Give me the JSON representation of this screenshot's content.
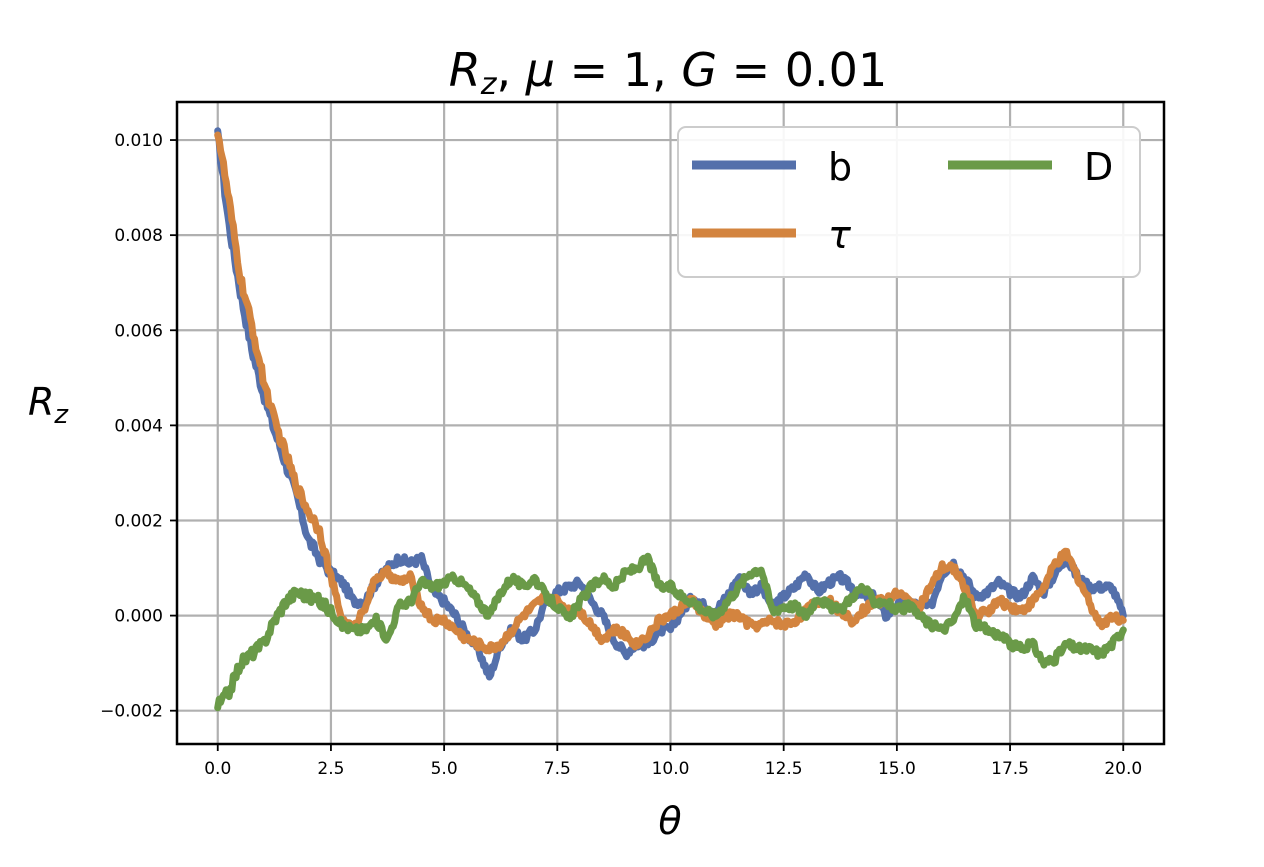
{
  "chart_data": {
    "type": "line",
    "title": "R_z, μ = 1, G = 0.01",
    "title_parts": {
      "r": "R",
      "r_sub": "z",
      "mid1": ", ",
      "mu": "μ",
      "eq1": " = 1, ",
      "g": "G",
      "eq2": " = 0.01"
    },
    "xlabel": "θ",
    "ylabel": "R_z",
    "ylabel_parts": {
      "r": "R",
      "r_sub": "z"
    },
    "xlim": [
      -0.9,
      20.9
    ],
    "ylim": [
      -0.0027,
      0.0108
    ],
    "xticks": [
      0.0,
      2.5,
      5.0,
      7.5,
      10.0,
      12.5,
      15.0,
      17.5,
      20.0
    ],
    "xtick_labels": [
      "0.0",
      "2.5",
      "5.0",
      "7.5",
      "10.0",
      "12.5",
      "15.0",
      "17.5",
      "20.0"
    ],
    "yticks": [
      -0.002,
      0.0,
      0.002,
      0.004,
      0.006,
      0.008,
      0.01
    ],
    "ytick_labels": [
      "−0.002",
      "0.000",
      "0.002",
      "0.004",
      "0.006",
      "0.008",
      "0.010"
    ],
    "grid": true,
    "legend": {
      "placement": "top-right",
      "columns": 2
    },
    "series": [
      {
        "name": "b",
        "color": "#5470ab",
        "x": [
          0,
          0.25,
          0.5,
          0.75,
          1.0,
          1.25,
          1.5,
          1.75,
          2.0,
          2.25,
          2.5,
          2.75,
          3.0,
          3.25,
          3.5,
          3.75,
          4.0,
          4.25,
          4.5,
          4.75,
          5.0,
          5.25,
          5.5,
          5.75,
          6.0,
          6.25,
          6.5,
          6.75,
          7.0,
          7.25,
          7.5,
          7.75,
          8.0,
          8.25,
          8.5,
          8.75,
          9.0,
          9.25,
          9.5,
          9.75,
          10.0,
          10.25,
          10.5,
          10.75,
          11.0,
          11.25,
          11.5,
          11.75,
          12.0,
          12.25,
          12.5,
          12.75,
          13.0,
          13.25,
          13.5,
          13.75,
          14.0,
          14.25,
          14.5,
          14.75,
          15.0,
          15.25,
          15.5,
          15.75,
          16.0,
          16.25,
          16.5,
          16.75,
          17.0,
          17.25,
          17.5,
          17.75,
          18.0,
          18.25,
          18.5,
          18.75,
          19.0,
          19.25,
          19.5,
          19.75,
          20.0
        ],
        "y": [
          0.0101,
          0.0082,
          0.0068,
          0.0056,
          0.0047,
          0.0039,
          0.0032,
          0.0025,
          0.0016,
          0.0012,
          0.0009,
          0.0007,
          0.0003,
          0.0003,
          0.0007,
          0.001,
          0.0012,
          0.0011,
          0.0012,
          0.0005,
          0.0003,
          0.0,
          -0.0004,
          -0.0007,
          -0.0013,
          -0.0006,
          -0.0003,
          -0.0005,
          -0.0003,
          0.0003,
          0.0005,
          0.0006,
          0.0007,
          0.0003,
          0.0,
          -0.0005,
          -0.0008,
          -0.0006,
          -0.0006,
          -0.0003,
          -0.0003,
          0.0001,
          0.0004,
          0.0002,
          0.0001,
          0.0004,
          0.0008,
          0.0005,
          0.0006,
          0.0002,
          0.0004,
          0.0006,
          0.0009,
          0.0005,
          0.0007,
          0.0008,
          0.0006,
          0.0004,
          0.0004,
          0.0,
          0.0002,
          0.0003,
          0.0002,
          0.0002,
          0.0009,
          0.0011,
          0.0008,
          0.0004,
          0.0005,
          0.0007,
          0.0005,
          0.0004,
          0.0008,
          0.0005,
          0.0009,
          0.0012,
          0.0008,
          0.0006,
          0.0006,
          0.0006,
          0.0
        ]
      },
      {
        "name": "τ",
        "color": "#d3843f",
        "x": [
          0,
          0.25,
          0.5,
          0.75,
          1.0,
          1.25,
          1.5,
          1.75,
          2.0,
          2.25,
          2.5,
          2.75,
          3.0,
          3.25,
          3.5,
          3.75,
          4.0,
          4.25,
          4.5,
          4.75,
          5.0,
          5.25,
          5.5,
          5.75,
          6.0,
          6.25,
          6.5,
          6.75,
          7.0,
          7.25,
          7.5,
          7.75,
          8.0,
          8.25,
          8.5,
          8.75,
          9.0,
          9.25,
          9.5,
          9.75,
          10.0,
          10.25,
          10.5,
          10.75,
          11.0,
          11.25,
          11.5,
          11.75,
          12.0,
          12.25,
          12.5,
          12.75,
          13.0,
          13.25,
          13.5,
          13.75,
          14.0,
          14.25,
          14.5,
          14.75,
          15.0,
          15.25,
          15.5,
          15.75,
          16.0,
          16.25,
          16.5,
          16.75,
          17.0,
          17.25,
          17.5,
          17.75,
          18.0,
          18.25,
          18.5,
          18.75,
          19.0,
          19.25,
          19.5,
          19.75,
          20.0
        ],
        "y": [
          0.0102,
          0.0087,
          0.0071,
          0.0061,
          0.005,
          0.0041,
          0.0034,
          0.0027,
          0.0022,
          0.0018,
          0.0008,
          -0.0001,
          -0.0003,
          0.0002,
          0.0008,
          0.0009,
          0.0007,
          0.0008,
          0.0002,
          -0.0001,
          -0.0001,
          -0.0003,
          -0.0005,
          -0.0006,
          -0.0007,
          -0.0006,
          -0.0003,
          0.0,
          0.0002,
          0.0004,
          0.0003,
          0.0001,
          0.0001,
          -0.0002,
          -0.0005,
          -0.0003,
          -0.0004,
          -0.0006,
          -0.0004,
          -0.0001,
          0.0,
          0.0002,
          0.0003,
          0.0,
          -0.0002,
          0.0,
          0.0,
          -0.0002,
          -0.0002,
          -0.0001,
          -0.0002,
          -0.0001,
          0.0001,
          0.0003,
          0.0003,
          0.0001,
          -0.0001,
          0.0001,
          0.0003,
          0.0003,
          0.0005,
          0.0003,
          0.0002,
          0.0006,
          0.001,
          0.001,
          0.0006,
          0.0,
          0.0001,
          0.0003,
          0.0002,
          0.0001,
          0.0003,
          0.0006,
          0.0011,
          0.0013,
          0.0008,
          0.0003,
          -0.0002,
          0.0,
          -0.0001
        ]
      },
      {
        "name": "D",
        "color": "#6a9a48",
        "x": [
          0,
          0.25,
          0.5,
          0.75,
          1.0,
          1.25,
          1.5,
          1.75,
          2.0,
          2.25,
          2.5,
          2.75,
          3.0,
          3.25,
          3.5,
          3.75,
          4.0,
          4.25,
          4.5,
          4.75,
          5.0,
          5.25,
          5.5,
          5.75,
          6.0,
          6.25,
          6.5,
          6.75,
          7.0,
          7.25,
          7.5,
          7.75,
          8.0,
          8.25,
          8.5,
          8.75,
          9.0,
          9.25,
          9.5,
          9.75,
          10.0,
          10.25,
          10.5,
          10.75,
          11.0,
          11.25,
          11.5,
          11.75,
          12.0,
          12.25,
          12.5,
          12.75,
          13.0,
          13.25,
          13.5,
          13.75,
          14.0,
          14.25,
          14.5,
          14.75,
          15.0,
          15.25,
          15.5,
          15.75,
          16.0,
          16.25,
          16.5,
          16.75,
          17.0,
          17.25,
          17.5,
          17.75,
          18.0,
          18.25,
          18.5,
          18.75,
          19.0,
          19.25,
          19.5,
          19.75,
          20.0
        ],
        "y": [
          -0.0019,
          -0.0016,
          -0.001,
          -0.0008,
          -0.0006,
          -0.0001,
          0.0003,
          0.0005,
          0.0004,
          0.0003,
          0.0001,
          -0.0002,
          -0.0003,
          -0.0003,
          -0.0001,
          -0.0005,
          0.0002,
          0.0003,
          0.0007,
          0.0006,
          0.0007,
          0.0008,
          0.0006,
          0.0003,
          0.0,
          0.0005,
          0.0008,
          0.0006,
          0.0008,
          0.0004,
          0.0002,
          -0.0001,
          0.0003,
          0.0006,
          0.0008,
          0.0006,
          0.0009,
          0.001,
          0.0012,
          0.0006,
          0.0006,
          0.0004,
          0.0003,
          0.0001,
          0.0,
          0.0003,
          0.0006,
          0.0009,
          0.001,
          0.0001,
          0.0002,
          0.0002,
          0.0,
          0.0004,
          0.0002,
          0.0001,
          0.0004,
          0.0006,
          0.0003,
          0.0003,
          0.0001,
          0.0002,
          0.0,
          -0.0002,
          -0.0003,
          -0.0001,
          0.0004,
          -0.0002,
          -0.0003,
          -0.0004,
          -0.0006,
          -0.0007,
          -0.0006,
          -0.001,
          -0.0009,
          -0.0006,
          -0.0007,
          -0.0007,
          -0.0008,
          -0.0006,
          -0.0003
        ]
      }
    ]
  }
}
